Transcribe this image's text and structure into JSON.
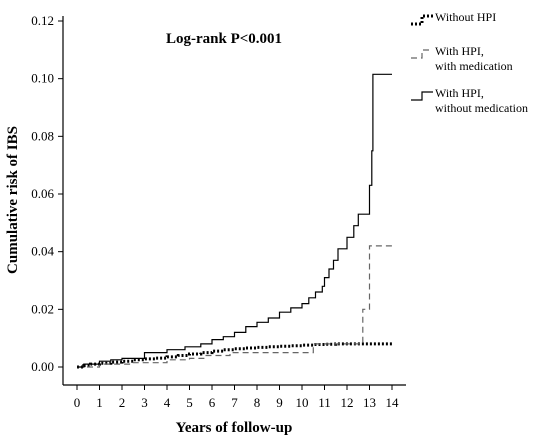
{
  "chart_data": {
    "type": "line",
    "title": "",
    "annotation": "Log-rank P<0.001",
    "xlabel": "Years of follow-up",
    "ylabel": "Cumulative risk of IBS",
    "xlim": [
      0,
      14
    ],
    "ylim": [
      0,
      0.12
    ],
    "x_ticks": [
      "0",
      "1",
      "2",
      "3",
      "4",
      "5",
      "6",
      "7",
      "8",
      "9",
      "10",
      "11",
      "12",
      "13",
      "14"
    ],
    "y_ticks": [
      "0.00",
      "0.02",
      "0.04",
      "0.06",
      "0.08",
      "0.10",
      "0.12"
    ],
    "grid": false,
    "legend_position": "top-right",
    "series": [
      {
        "name": "Without HPI",
        "style": "dotted",
        "color": "#000000",
        "points": [
          [
            0,
            0
          ],
          [
            0.3,
            0.0005
          ],
          [
            0.6,
            0.001
          ],
          [
            1,
            0.0013
          ],
          [
            1.5,
            0.0017
          ],
          [
            2,
            0.002
          ],
          [
            2.5,
            0.0025
          ],
          [
            3,
            0.0028
          ],
          [
            3.5,
            0.0031
          ],
          [
            4,
            0.0035
          ],
          [
            4.5,
            0.004
          ],
          [
            5,
            0.0045
          ],
          [
            5.5,
            0.005
          ],
          [
            6,
            0.0055
          ],
          [
            6.5,
            0.006
          ],
          [
            7,
            0.0063
          ],
          [
            7.5,
            0.0066
          ],
          [
            8,
            0.0068
          ],
          [
            8.5,
            0.007
          ],
          [
            9,
            0.0072
          ],
          [
            9.5,
            0.0074
          ],
          [
            10,
            0.0076
          ],
          [
            10.5,
            0.0078
          ],
          [
            11,
            0.0079
          ],
          [
            11.5,
            0.008
          ],
          [
            12,
            0.008
          ],
          [
            12.5,
            0.008
          ],
          [
            13,
            0.008
          ],
          [
            14,
            0.008
          ]
        ]
      },
      {
        "name": "With HPI,\nwith medication",
        "style": "dashed",
        "color": "#666666",
        "points": [
          [
            0,
            0
          ],
          [
            0.8,
            0
          ],
          [
            1,
            0.001
          ],
          [
            2,
            0.001
          ],
          [
            2.5,
            0.0015
          ],
          [
            3,
            0.0015
          ],
          [
            4,
            0.0025
          ],
          [
            5,
            0.003
          ],
          [
            5.7,
            0.004
          ],
          [
            6.8,
            0.005
          ],
          [
            8,
            0.005
          ],
          [
            9,
            0.005
          ],
          [
            10,
            0.005
          ],
          [
            10.5,
            0.008
          ],
          [
            11,
            0.008
          ],
          [
            12,
            0.008
          ],
          [
            12.5,
            0.008
          ],
          [
            12.7,
            0.02
          ],
          [
            12.95,
            0.02
          ],
          [
            13,
            0.042
          ],
          [
            14,
            0.042
          ]
        ]
      },
      {
        "name": "With HPI,\nwithout medication",
        "style": "solid",
        "color": "#000000",
        "points": [
          [
            0,
            0
          ],
          [
            0.3,
            0.001
          ],
          [
            1,
            0.002
          ],
          [
            1.5,
            0.0025
          ],
          [
            2,
            0.003
          ],
          [
            3,
            0.005
          ],
          [
            4,
            0.006
          ],
          [
            4.8,
            0.007
          ],
          [
            5.5,
            0.008
          ],
          [
            6,
            0.0095
          ],
          [
            6.5,
            0.0105
          ],
          [
            7,
            0.012
          ],
          [
            7.5,
            0.014
          ],
          [
            8,
            0.0155
          ],
          [
            8.5,
            0.017
          ],
          [
            9,
            0.019
          ],
          [
            9.5,
            0.0205
          ],
          [
            10,
            0.022
          ],
          [
            10.3,
            0.024
          ],
          [
            10.6,
            0.026
          ],
          [
            10.9,
            0.028
          ],
          [
            11,
            0.031
          ],
          [
            11.2,
            0.034
          ],
          [
            11.4,
            0.037
          ],
          [
            11.6,
            0.041
          ],
          [
            12,
            0.045
          ],
          [
            12.3,
            0.049
          ],
          [
            12.5,
            0.053
          ],
          [
            12.8,
            0.053
          ],
          [
            13,
            0.063
          ],
          [
            13.1,
            0.075
          ],
          [
            13.15,
            0.1015
          ],
          [
            14,
            0.1015
          ]
        ]
      }
    ]
  }
}
